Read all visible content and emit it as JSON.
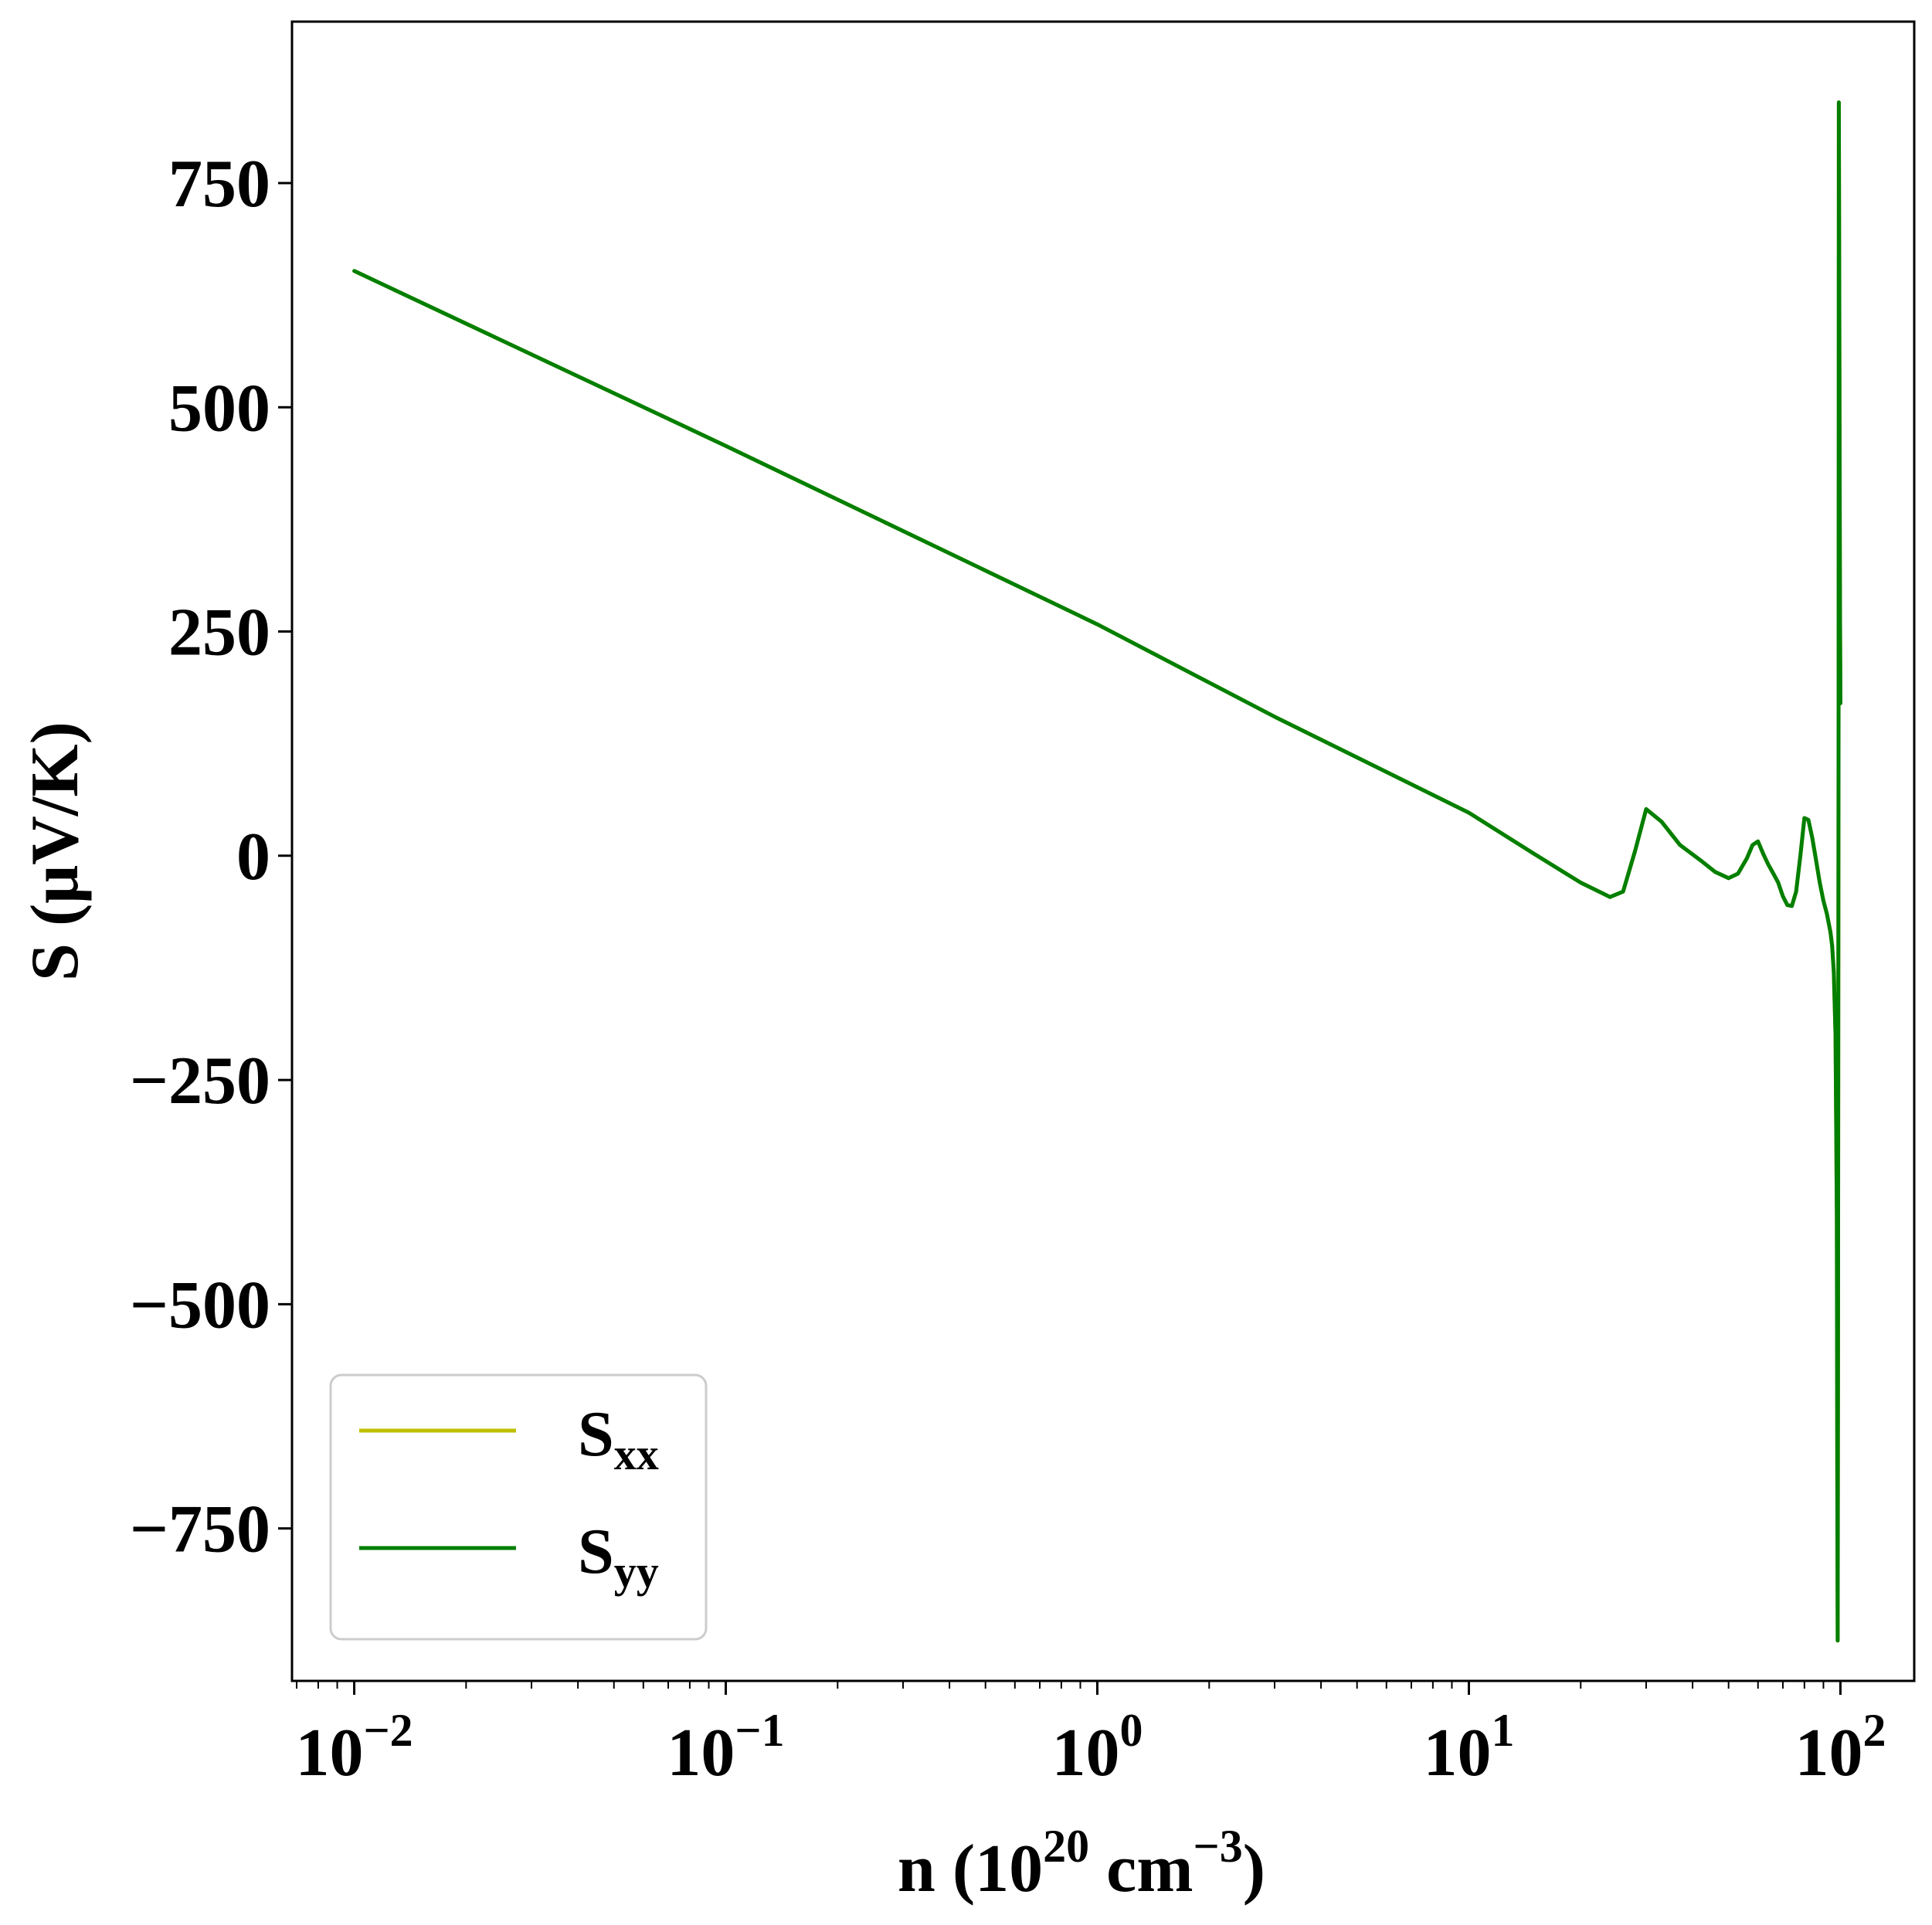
{
  "chart_data": {
    "type": "line",
    "xlabel": {
      "base": "n (10",
      "exp1": "20",
      "mid": " cm",
      "exp2": "−3",
      "tail": ")"
    },
    "ylabel": "S (μV/K)",
    "xscale": "log",
    "xlim": [
      0.0068,
      158
    ],
    "ylim": [
      -920,
      930
    ],
    "yticks": [
      {
        "value": -750,
        "label": "−750"
      },
      {
        "value": -500,
        "label": "−500"
      },
      {
        "value": -250,
        "label": "−250"
      },
      {
        "value": 0,
        "label": "0"
      },
      {
        "value": 250,
        "label": "250"
      },
      {
        "value": 500,
        "label": "500"
      },
      {
        "value": 750,
        "label": "750"
      }
    ],
    "xticks": [
      {
        "value": 0.01,
        "base": "10",
        "exp": "−2"
      },
      {
        "value": 0.1,
        "base": "10",
        "exp": "−1"
      },
      {
        "value": 1,
        "base": "10",
        "exp": "0"
      },
      {
        "value": 10,
        "base": "10",
        "exp": "1"
      },
      {
        "value": 100,
        "base": "10",
        "exp": "2"
      }
    ],
    "grid": false,
    "legend_position": "lower-left",
    "series": [
      {
        "name": "S",
        "sub": "xx",
        "color": "#bfbf00",
        "x": [
          0.01,
          0.1,
          1,
          3,
          10,
          15,
          20,
          24,
          26,
          28,
          30,
          33,
          37,
          42,
          46,
          50,
          53,
          56,
          58,
          60,
          62,
          64,
          66,
          68,
          70,
          72,
          74,
          76,
          78,
          80,
          82,
          84,
          86,
          88,
          90,
          92,
          94,
          95,
          96,
          97,
          97.8,
          98.1,
          98.3,
          98.5,
          98.7,
          98.9,
          99.0,
          99.2,
          99.6,
          99.8,
          100
        ],
        "y": [
          652,
          457,
          258,
          155,
          48,
          2,
          -30,
          -46,
          -40,
          5,
          52,
          38,
          12,
          -5,
          -18,
          -25,
          -20,
          -3,
          12,
          16,
          2,
          -10,
          -20,
          -30,
          -45,
          -55,
          -56,
          -40,
          0,
          42,
          40,
          20,
          -5,
          -30,
          -50,
          -65,
          -85,
          -100,
          -130,
          -200,
          -400,
          -700,
          -875,
          -600,
          -200,
          200,
          840,
          700,
          380,
          260,
          170
        ]
      },
      {
        "name": "S",
        "sub": "yy",
        "color": "#007f00",
        "x": [
          0.01,
          0.1,
          1,
          3,
          10,
          15,
          20,
          24,
          26,
          28,
          30,
          33,
          37,
          42,
          46,
          50,
          53,
          56,
          58,
          60,
          62,
          64,
          66,
          68,
          70,
          72,
          74,
          76,
          78,
          80,
          82,
          84,
          86,
          88,
          90,
          92,
          94,
          95,
          96,
          97,
          97.8,
          98.1,
          98.3,
          98.5,
          98.7,
          98.9,
          99.0,
          99.2,
          99.6,
          99.8,
          100
        ],
        "y": [
          652,
          457,
          258,
          155,
          48,
          2,
          -30,
          -46,
          -40,
          5,
          52,
          38,
          12,
          -5,
          -18,
          -25,
          -20,
          -3,
          12,
          16,
          2,
          -10,
          -20,
          -30,
          -45,
          -55,
          -56,
          -40,
          0,
          42,
          40,
          20,
          -5,
          -30,
          -50,
          -65,
          -85,
          -100,
          -130,
          -200,
          -400,
          -700,
          -875,
          -600,
          -200,
          200,
          840,
          700,
          380,
          260,
          170
        ]
      }
    ]
  }
}
